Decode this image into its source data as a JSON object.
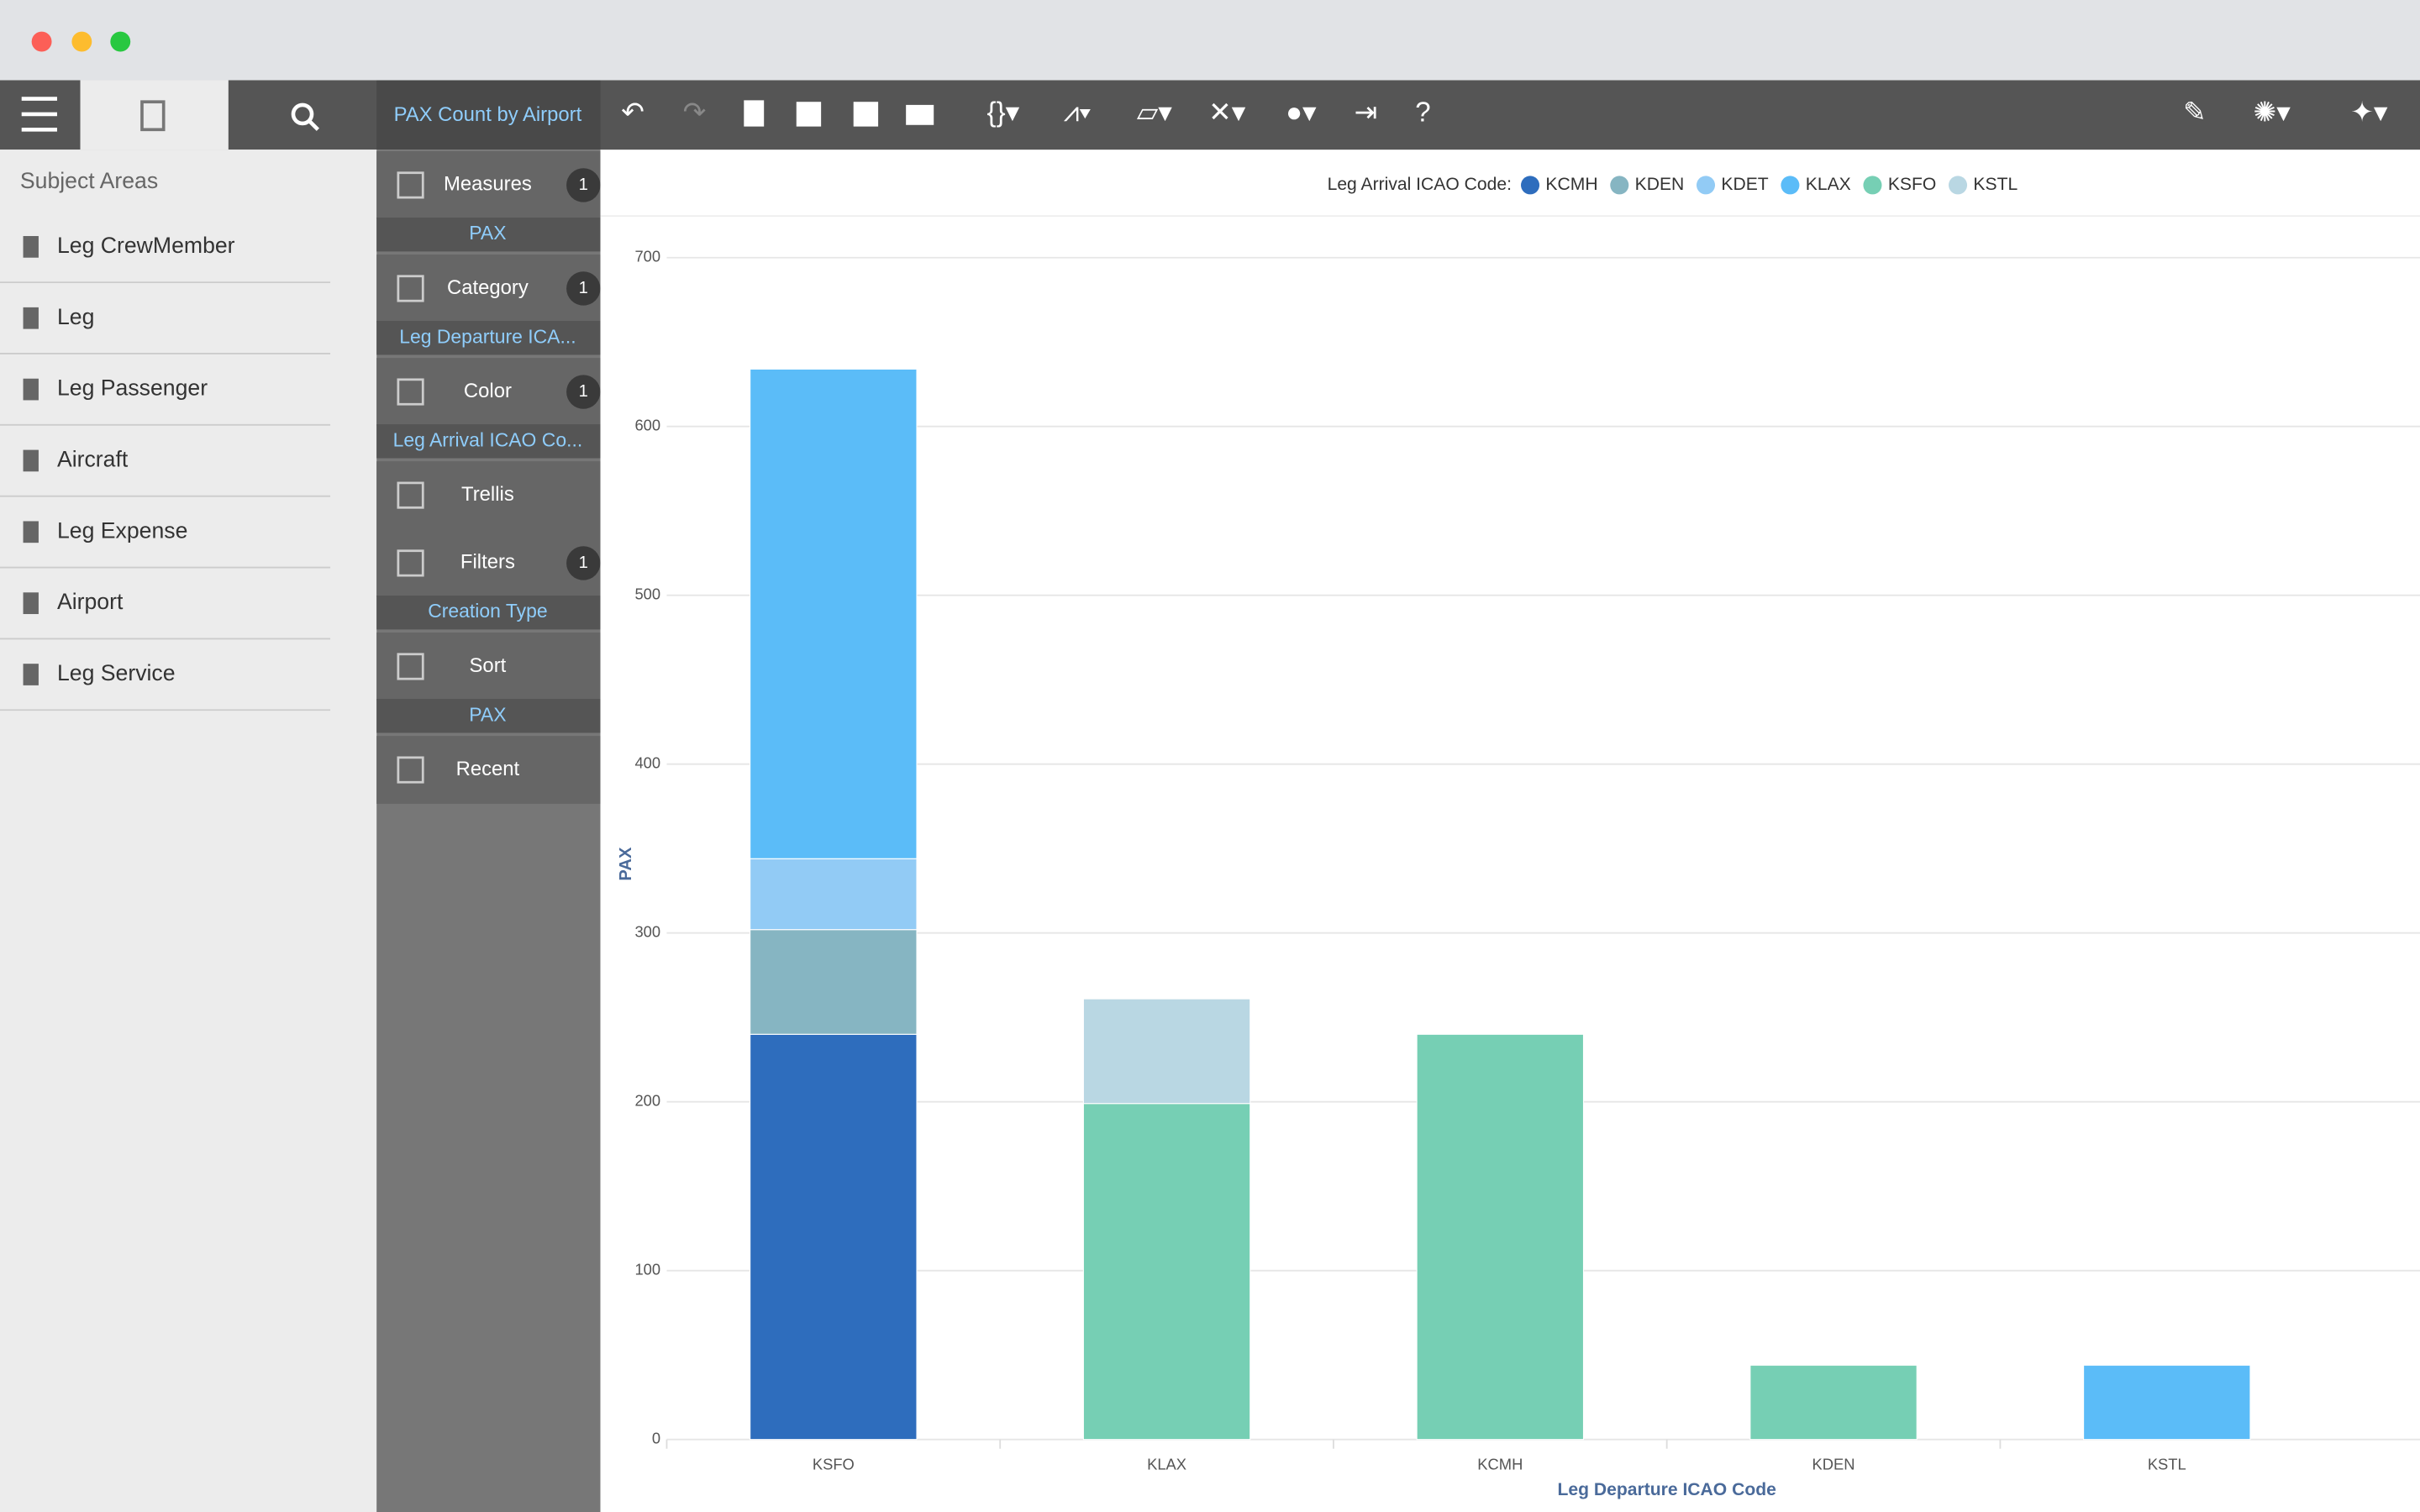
{
  "toolbar": {
    "tab": "PAX Count by Airport"
  },
  "subject_areas": {
    "title": "Subject Areas",
    "items": [
      "Leg CrewMember",
      "Leg",
      "Leg Passenger",
      "Aircraft",
      "Leg Expense",
      "Airport",
      "Leg Service"
    ]
  },
  "panel": {
    "measures": {
      "label": "Measures",
      "count": 1,
      "field": "PAX"
    },
    "category": {
      "label": "Category",
      "count": 1,
      "field": "Leg Departure ICA..."
    },
    "color": {
      "label": "Color",
      "count": 1,
      "field": "Leg Arrival ICAO Co..."
    },
    "trellis": {
      "label": "Trellis"
    },
    "filters": {
      "label": "Filters",
      "count": 1,
      "field": "Creation Type"
    },
    "sort": {
      "label": "Sort",
      "field": "PAX"
    },
    "recent": {
      "label": "Recent"
    }
  },
  "chart_data": {
    "type": "bar",
    "stacked": true,
    "legend_title": "Leg Arrival ICAO Code:",
    "legend": "top",
    "x_label": "Leg Departure ICAO Code",
    "y_label": "PAX",
    "categories": [
      "KSFO",
      "KLAX",
      "KCMH",
      "KDEN",
      "KSTL"
    ],
    "series": [
      {
        "name": "KCMH",
        "color": "#2e6dbd",
        "values": [
          240,
          null,
          null,
          null,
          null
        ]
      },
      {
        "name": "KDEN",
        "color": "#86b5c2",
        "values": [
          62,
          null,
          null,
          null,
          null
        ]
      },
      {
        "name": "KDET",
        "color": "#92cbf5",
        "values": [
          42,
          null,
          null,
          null,
          null
        ]
      },
      {
        "name": "KLAX",
        "color": "#5bbcf8",
        "values": [
          290,
          null,
          null,
          null,
          44
        ]
      },
      {
        "name": "KSFO",
        "color": "#76cfb4",
        "values": [
          null,
          199,
          240,
          44,
          null
        ]
      },
      {
        "name": "KSTL",
        "color": "#b9d7e3",
        "values": [
          null,
          62,
          null,
          null,
          null
        ]
      }
    ],
    "ylim": [
      0,
      700
    ],
    "yticks": [
      0,
      100,
      200,
      300,
      400,
      500,
      600,
      700
    ],
    "grid": true
  }
}
